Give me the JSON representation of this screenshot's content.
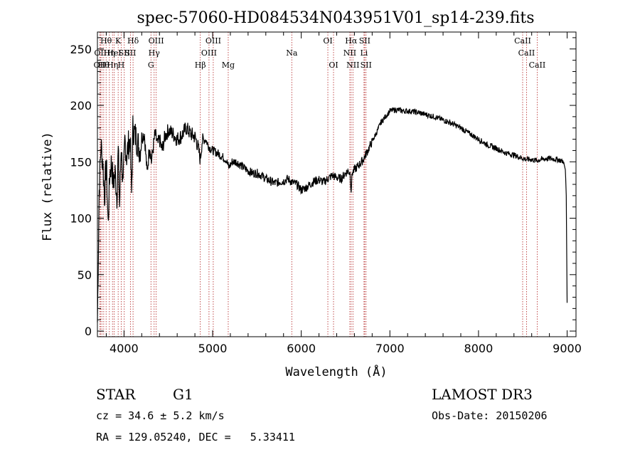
{
  "chart_data": {
    "type": "line",
    "title": "spec-57060-HD084534N043951V01_sp14-239.fits",
    "xlabel": "Wavelength (Å)",
    "ylabel": "Flux (relative)",
    "xlim": [
      3700,
      9100
    ],
    "ylim": [
      -5,
      265
    ],
    "xticks": [
      {
        "value": 4000,
        "label": "4000"
      },
      {
        "value": 5000,
        "label": "5000"
      },
      {
        "value": 6000,
        "label": "6000"
      },
      {
        "value": 7000,
        "label": "7000"
      },
      {
        "value": 8000,
        "label": "8000"
      },
      {
        "value": 9000,
        "label": "9000"
      }
    ],
    "yticks": [
      {
        "value": 0,
        "label": "0"
      },
      {
        "value": 50,
        "label": "50"
      },
      {
        "value": 100,
        "label": "100"
      },
      {
        "value": 150,
        "label": "150"
      },
      {
        "value": 200,
        "label": "200"
      },
      {
        "value": 250,
        "label": "250"
      }
    ],
    "series": [
      {
        "x": [
          3700,
          3720,
          3740,
          3760,
          3780,
          3800,
          3820,
          3840,
          3860,
          3880,
          3900,
          3920,
          3935,
          3950,
          3968,
          3990,
          4010,
          4030,
          4050,
          4070,
          4085,
          4100,
          4120,
          4150,
          4180,
          4200,
          4230,
          4260,
          4290,
          4310,
          4330,
          4350,
          4380,
          4400,
          4430,
          4460,
          4500,
          4550,
          4600,
          4650,
          4700,
          4750,
          4800,
          4830,
          4861,
          4880,
          4920,
          4960,
          5000,
          5050,
          5100,
          5150,
          5183,
          5220,
          5270,
          5300,
          5350,
          5400,
          5450,
          5500,
          5550,
          5600,
          5650,
          5700,
          5750,
          5800,
          5850,
          5893,
          5950,
          6000,
          6050,
          6100,
          6150,
          6200,
          6250,
          6300,
          6350,
          6400,
          6450,
          6500,
          6530,
          6550,
          6563,
          6575,
          6600,
          6650,
          6700,
          6750,
          6800,
          6850,
          6900,
          6950,
          7000,
          7050,
          7100,
          7150,
          7200,
          7300,
          7400,
          7500,
          7600,
          7700,
          7800,
          7900,
          8000,
          8100,
          8200,
          8300,
          8400,
          8500,
          8542,
          8600,
          8662,
          8700,
          8800,
          8900,
          8960,
          8980,
          8990,
          9000
        ],
        "y": [
          8,
          125,
          165,
          150,
          120,
          150,
          95,
          140,
          150,
          130,
          140,
          120,
          160,
          110,
          165,
          125,
          170,
          155,
          165,
          170,
          120,
          180,
          175,
          168,
          160,
          172,
          175,
          140,
          165,
          150,
          163,
          175,
          165,
          170,
          160,
          172,
          178,
          175,
          170,
          173,
          180,
          175,
          172,
          165,
          152,
          168,
          170,
          163,
          160,
          158,
          155,
          152,
          145,
          150,
          150,
          148,
          145,
          142,
          140,
          140,
          138,
          135,
          133,
          131,
          132,
          133,
          135,
          132,
          130,
          125,
          127,
          130,
          133,
          134,
          132,
          135,
          138,
          136,
          135,
          140,
          142,
          140,
          125,
          140,
          143,
          147,
          152,
          160,
          168,
          176,
          185,
          190,
          195,
          196,
          196,
          195,
          195,
          194,
          192,
          190,
          187,
          184,
          180,
          175,
          170,
          165,
          162,
          158,
          156,
          153,
          152,
          152,
          151,
          152,
          153,
          152,
          150,
          143,
          120,
          25
        ]
      }
    ],
    "lines": [
      {
        "x": 3727,
        "row": 2,
        "label": "OII"
      },
      {
        "x": 3734,
        "row": 1,
        "label": "OII"
      },
      {
        "x": 3750,
        "row": 0,
        "label": ""
      },
      {
        "x": 3771,
        "row": 2,
        "label": "Hθ"
      },
      {
        "x": 3798,
        "row": 0,
        "label": "Hθ"
      },
      {
        "x": 3835,
        "row": 1,
        "label": "Hη"
      },
      {
        "x": 3870,
        "row": 2,
        "label": "Hη"
      },
      {
        "x": 3889,
        "row": 1,
        "label": "HeI"
      },
      {
        "x": 3934,
        "row": 0,
        "label": "K"
      },
      {
        "x": 3968,
        "row": 2,
        "label": "H"
      },
      {
        "x": 4003,
        "row": 1,
        "label": "SII"
      },
      {
        "x": 4072,
        "row": 1,
        "label": "SII"
      },
      {
        "x": 4102,
        "row": 0,
        "label": "Hδ"
      },
      {
        "x": 4304,
        "row": 2,
        "label": "G"
      },
      {
        "x": 4340,
        "row": 1,
        "label": "Hγ"
      },
      {
        "x": 4363,
        "row": 0,
        "label": "OIII"
      },
      {
        "x": 4861,
        "row": 2,
        "label": "Hβ"
      },
      {
        "x": 4959,
        "row": 1,
        "label": "OIII"
      },
      {
        "x": 5007,
        "row": 0,
        "label": "OIII"
      },
      {
        "x": 5176,
        "row": 2,
        "label": "Mg"
      },
      {
        "x": 5893,
        "row": 1,
        "label": "Na"
      },
      {
        "x": 6300,
        "row": 0,
        "label": "OI"
      },
      {
        "x": 6364,
        "row": 2,
        "label": "OI"
      },
      {
        "x": 6548,
        "row": 1,
        "label": "NII"
      },
      {
        "x": 6563,
        "row": 0,
        "label": "Hα"
      },
      {
        "x": 6583,
        "row": 2,
        "label": "NII"
      },
      {
        "x": 6708,
        "row": 1,
        "label": "Li"
      },
      {
        "x": 6716,
        "row": 0,
        "label": "SII"
      },
      {
        "x": 6731,
        "row": 2,
        "label": "SII"
      },
      {
        "x": 8498,
        "row": 0,
        "label": "CaII"
      },
      {
        "x": 8542,
        "row": 1,
        "label": "CaII"
      },
      {
        "x": 8662,
        "row": 2,
        "label": "CaII"
      }
    ]
  },
  "info": {
    "class": "STAR",
    "subclass": "G1",
    "survey": "LAMOST DR3",
    "cz": "cz = 34.6 ± 5.2 km/s",
    "obs_date": "Obs-Date: 20150206",
    "coords": "RA = 129.05240, DEC =   5.33411"
  },
  "colors": {
    "line_marker": "#b22222",
    "spectrum": "#000000"
  }
}
